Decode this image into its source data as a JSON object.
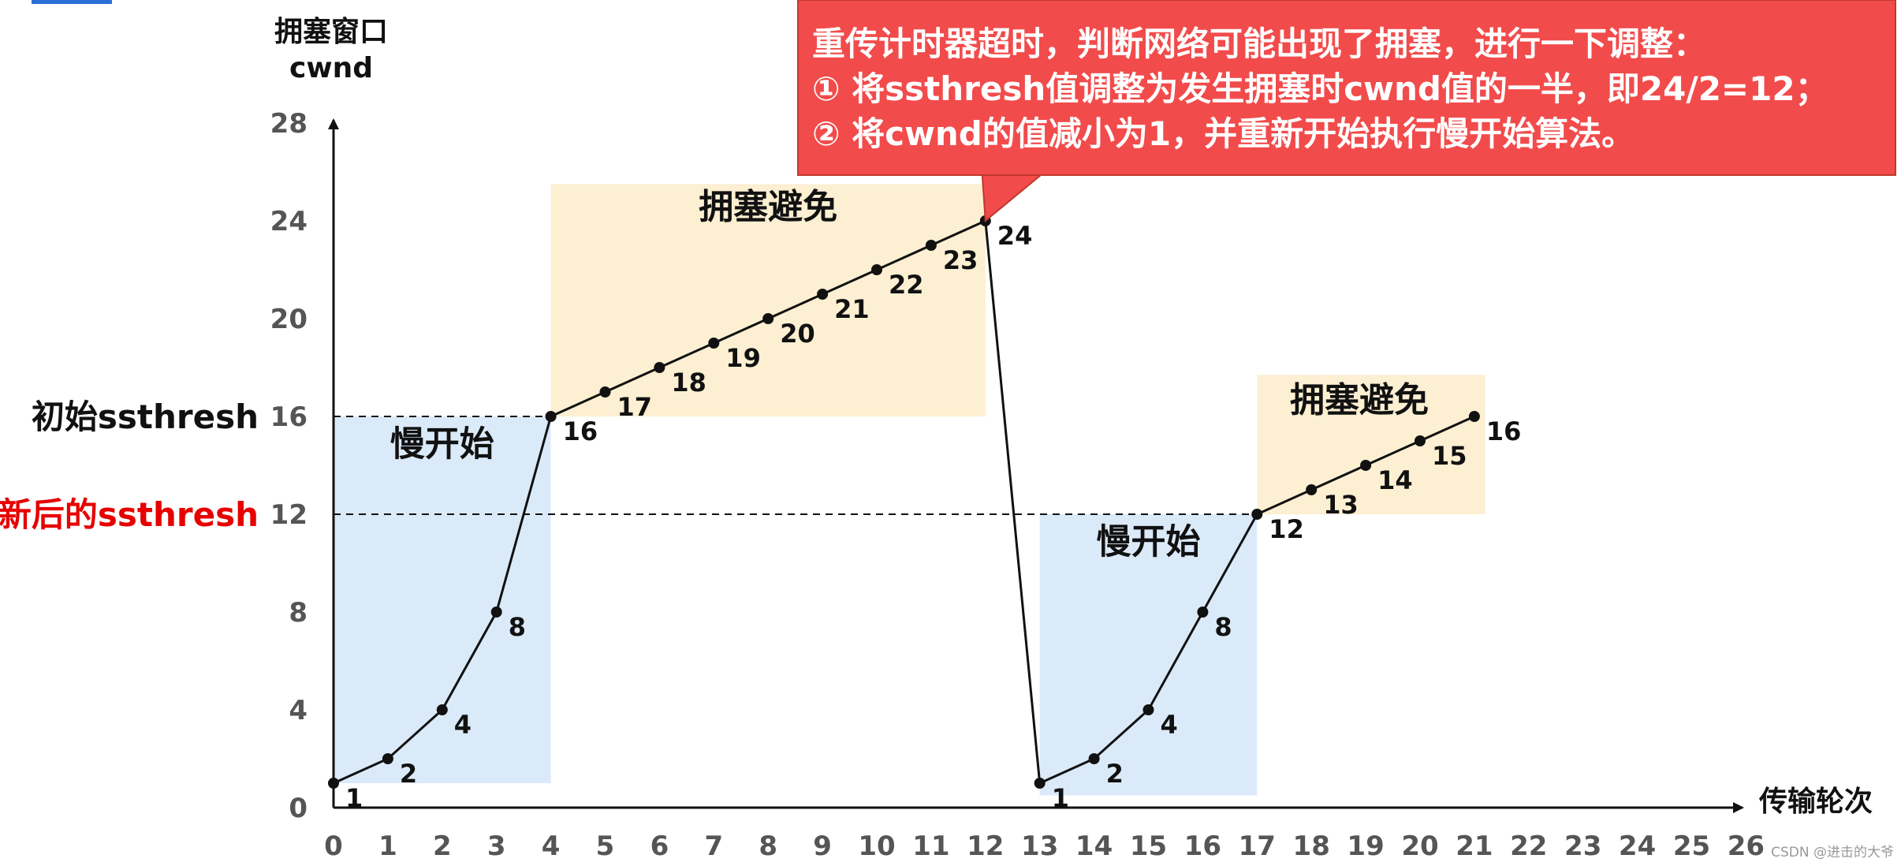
{
  "chart_data": {
    "type": "line",
    "title": "",
    "ylabel": "拥塞窗口",
    "ylabel_sub": "cwnd",
    "xlabel": "传输轮次",
    "xlim": [
      0,
      26
    ],
    "ylim": [
      0,
      28
    ],
    "x_ticks": [
      0,
      1,
      2,
      3,
      4,
      5,
      6,
      7,
      8,
      9,
      10,
      11,
      12,
      13,
      14,
      15,
      16,
      17,
      18,
      19,
      20,
      21,
      22,
      23,
      24,
      25,
      26
    ],
    "y_ticks": [
      0,
      4,
      8,
      12,
      16,
      20,
      24,
      28
    ],
    "series": [
      {
        "name": "cwnd",
        "points": [
          {
            "x": 0,
            "y": 1,
            "label": "1"
          },
          {
            "x": 1,
            "y": 2,
            "label": "2"
          },
          {
            "x": 2,
            "y": 4,
            "label": "4"
          },
          {
            "x": 3,
            "y": 8,
            "label": "8"
          },
          {
            "x": 4,
            "y": 16,
            "label": "16"
          },
          {
            "x": 5,
            "y": 17,
            "label": "17"
          },
          {
            "x": 6,
            "y": 18,
            "label": "18"
          },
          {
            "x": 7,
            "y": 19,
            "label": "19"
          },
          {
            "x": 8,
            "y": 20,
            "label": "20"
          },
          {
            "x": 9,
            "y": 21,
            "label": "21"
          },
          {
            "x": 10,
            "y": 22,
            "label": "22"
          },
          {
            "x": 11,
            "y": 23,
            "label": "23"
          },
          {
            "x": 12,
            "y": 24,
            "label": "24"
          },
          {
            "x": 13,
            "y": 1,
            "label": "1"
          },
          {
            "x": 14,
            "y": 2,
            "label": "2"
          },
          {
            "x": 15,
            "y": 4,
            "label": "4"
          },
          {
            "x": 16,
            "y": 8,
            "label": "8"
          },
          {
            "x": 17,
            "y": 12,
            "label": "12"
          },
          {
            "x": 18,
            "y": 13,
            "label": "13"
          },
          {
            "x": 19,
            "y": 14,
            "label": "14"
          },
          {
            "x": 20,
            "y": 15,
            "label": "15"
          },
          {
            "x": 21,
            "y": 16,
            "label": "16"
          }
        ]
      }
    ],
    "thresholds": [
      {
        "name": "initial",
        "value": 16,
        "label": "初始ssthresh",
        "x_end": 4,
        "color": "#111111"
      },
      {
        "name": "updated",
        "value": 12,
        "label": "更新后的ssthresh",
        "x_end": 17,
        "color": "#e60000"
      }
    ],
    "regions": [
      {
        "name": "slow-start-1",
        "label": "慢开始",
        "x0": 0,
        "x1": 4,
        "y0": 1,
        "y1": 16,
        "color": "#dbeaf9"
      },
      {
        "name": "congestion-avoidance-1",
        "label": "拥塞避免",
        "x0": 4,
        "x1": 12,
        "y0": 16,
        "y1": 25.5,
        "color": "#fcefd2"
      },
      {
        "name": "slow-start-2",
        "label": "慢开始",
        "x0": 13,
        "x1": 17,
        "y0": 0.5,
        "y1": 12,
        "color": "#dbeaf9"
      },
      {
        "name": "congestion-avoidance-2",
        "label": "拥塞避免",
        "x0": 17,
        "x1": 21.2,
        "y0": 12,
        "y1": 17.7,
        "color": "#fcefd2"
      }
    ],
    "annotations": [
      {
        "name": "timeout-callout",
        "target": {
          "x": 12,
          "y": 24
        },
        "bg_color": "#f24b4b",
        "lines": [
          "重传计时器超时，判断网络可能出现了拥塞，进行一下调整：",
          "①  将ssthresh值调整为发生拥塞时cwnd值的一半，即24/2=12；",
          "②  将cwnd的值减小为1，并重新开始执行慢开始算法。"
        ]
      }
    ]
  },
  "watermark": "CSDN @进击的大爷"
}
